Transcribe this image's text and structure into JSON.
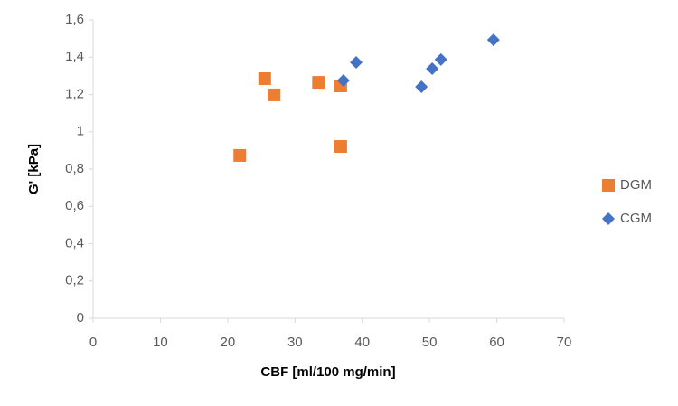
{
  "chart_data": {
    "type": "scatter",
    "x_label": "CBF [ml/100 mg/min]",
    "y_label": "G' [kPa]",
    "xlim": [
      0,
      70
    ],
    "xticks": [
      0,
      10,
      20,
      30,
      40,
      50,
      60,
      70
    ],
    "ylim": [
      0,
      1.6
    ],
    "yticks": [
      0,
      {
        "value": 0.2,
        "label": "0,2"
      },
      {
        "value": 0.4,
        "label": "0,4"
      },
      {
        "value": 0.6,
        "label": "0,6"
      },
      {
        "value": 0.8,
        "label": "0,8"
      },
      1,
      {
        "value": 1.2,
        "label": "1,2"
      },
      {
        "value": 1.4,
        "label": "1,4"
      },
      {
        "value": 1.6,
        "label": "1,6"
      }
    ],
    "grid": false,
    "legend": "right",
    "series": [
      {
        "name": "DGM",
        "color": "#ed7d31",
        "marker": "square",
        "x": [
          21.8,
          25.5,
          26.9,
          33.5,
          36.8,
          36.8
        ],
        "values": [
          0.873,
          1.285,
          1.198,
          1.265,
          1.246,
          0.921
        ]
      },
      {
        "name": "CGM",
        "color": "#4472c4",
        "marker": "diamond",
        "x": [
          37.2,
          39.1,
          48.8,
          50.4,
          51.7,
          59.5
        ],
        "values": [
          1.275,
          1.372,
          1.241,
          1.338,
          1.387,
          1.493
        ]
      }
    ]
  }
}
